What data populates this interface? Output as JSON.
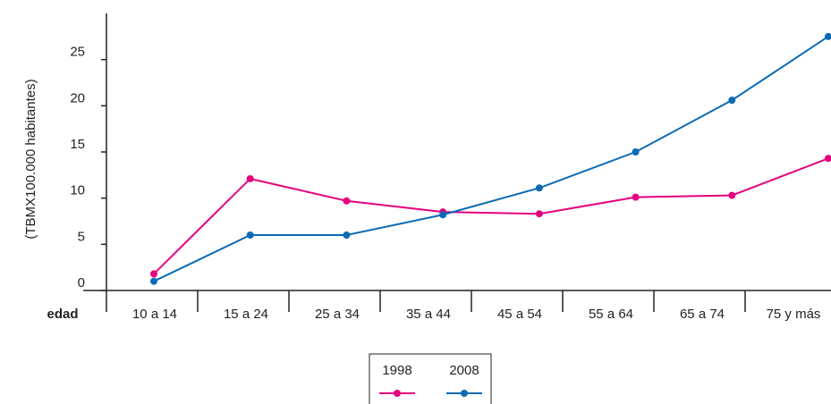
{
  "chart_data": {
    "type": "line",
    "y_label": "(TBMX100.000 habitantes)",
    "x_label": "edad",
    "categories": [
      "10 a 14",
      "15 a 24",
      "25 a 34",
      "35 a 44",
      "45 a 54",
      "55 a 64",
      "65 a 74",
      "75 y más"
    ],
    "series": [
      {
        "name": "1998",
        "color": "#e5007e",
        "values": [
          1.8,
          12.1,
          9.7,
          8.5,
          8.3,
          10.1,
          10.3,
          14.3
        ]
      },
      {
        "name": "2008",
        "color": "#0a6bb5",
        "values": [
          1.0,
          6.0,
          6.0,
          8.2,
          11.1,
          15.0,
          20.6,
          27.5
        ]
      }
    ],
    "ylim": [
      0,
      30
    ],
    "yticks": [
      0,
      5,
      10,
      15,
      20,
      25
    ]
  }
}
